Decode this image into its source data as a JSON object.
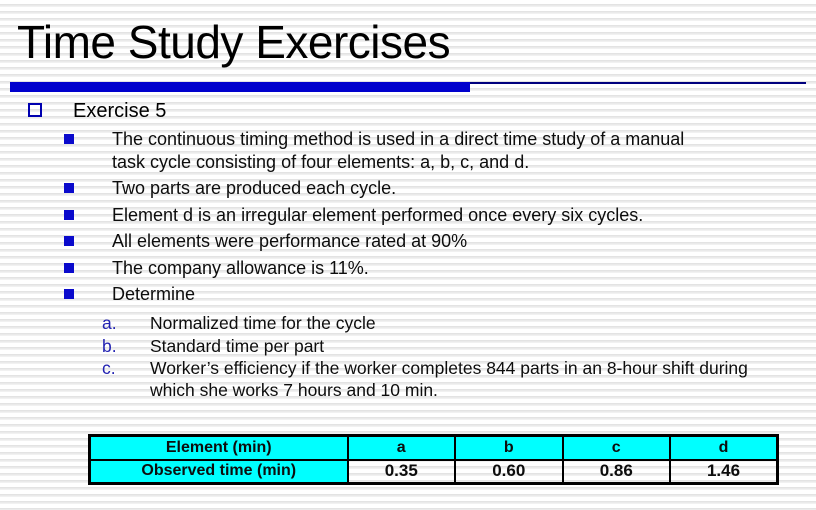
{
  "slide": {
    "title": "Time Study Exercises",
    "colors": {
      "accent_bar": "#0101CD",
      "accent_line": "#00007E",
      "bullet_blue": "#0A0ACC",
      "letter_blue": "#2222B2",
      "table_header_bg": "#00FFFF"
    }
  },
  "exercise": {
    "heading": "Exercise 5",
    "bullets": [
      "The continuous timing method is used in a direct time study of a manual task cycle consisting of four elements: a, b, c, and d.",
      "Two parts are produced each cycle.",
      "Element d is an irregular element performed once every six cycles.",
      "All elements were performance rated at 90%",
      "The company allowance is 11%.",
      "Determine"
    ],
    "determine_items": [
      {
        "label": "a.",
        "text": "Normalized time for the cycle"
      },
      {
        "label": "b.",
        "text": "Standard time per part"
      },
      {
        "label": "c.",
        "text": "Worker’s efficiency if the worker completes 844 parts in an 8-hour shift during which she works 7 hours and 10 min."
      }
    ]
  },
  "table": {
    "header_row": [
      "Element (min)",
      "a",
      "b",
      "c",
      "d"
    ],
    "data_row": [
      "Observed time (min)",
      "0.35",
      "0.60",
      "0.86",
      "1.46"
    ]
  }
}
